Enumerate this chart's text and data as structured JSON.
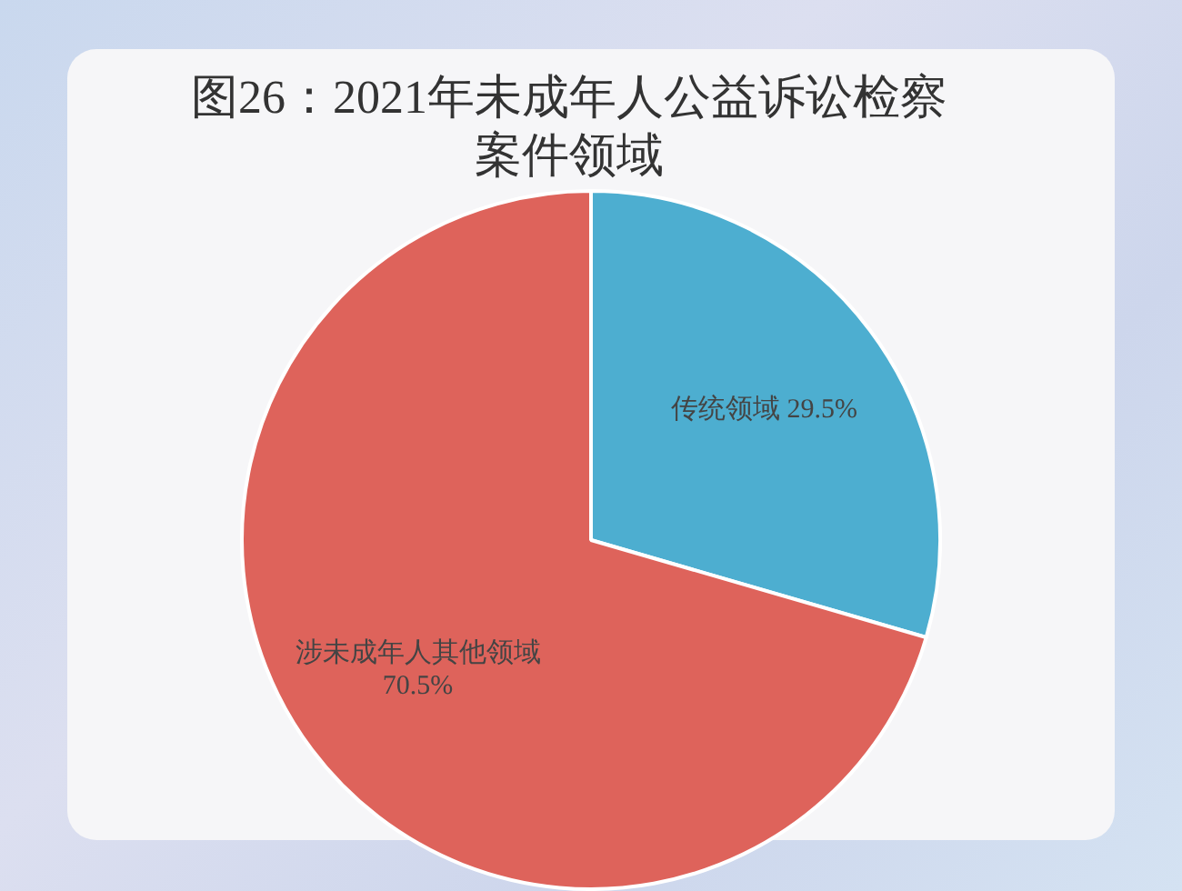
{
  "chart_data": {
    "type": "pie",
    "title": "图26：2021年未成年人公益诉讼检察案件领域",
    "categories": [
      "传统领域",
      "涉未成年人其他领域"
    ],
    "values": [
      29.5,
      70.5
    ],
    "colors": [
      "#4daed0",
      "#de635b"
    ],
    "value_labels": [
      "29.5%",
      "70.5%"
    ],
    "legend": false
  }
}
